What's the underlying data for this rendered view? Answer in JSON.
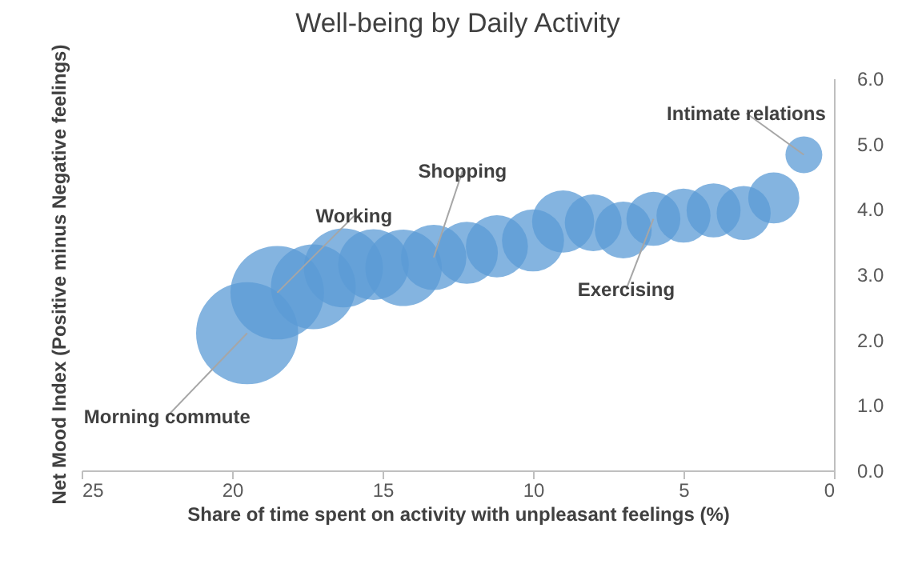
{
  "chart_data": {
    "type": "bubble",
    "title": "Well-being by Daily Activity",
    "xlabel": "Share of time spent on activity with unpleasant feelings (%)",
    "ylabel": "Net Mood Index (Positive minus Negative feelings)",
    "x": [
      19.5,
      18.5,
      17.3,
      16.3,
      15.3,
      14.3,
      13.3,
      12.2,
      11.2,
      10,
      9,
      8,
      7,
      6,
      5,
      4,
      3,
      2,
      1
    ],
    "series": [
      {
        "color": "#5b9bd5",
        "values": [
          2.1,
          2.72,
          2.81,
          3.1,
          3.15,
          3.1,
          3.26,
          3.33,
          3.43,
          3.52,
          3.81,
          3.79,
          3.68,
          3.85,
          3.9,
          3.98,
          3.94,
          4.17,
          4.83
        ],
        "sizes": [
          1,
          0.84,
          0.69,
          0.6,
          0.48,
          0.56,
          0.41,
          0.37,
          0.37,
          0.37,
          0.37,
          0.31,
          0.31,
          0.28,
          0.28,
          0.28,
          0.28,
          0.25,
          0.13
        ]
      }
    ],
    "xlim": [
      25,
      0
    ],
    "xticks": [
      25,
      20,
      15,
      10,
      5,
      0
    ],
    "ylim": [
      0,
      6
    ],
    "yticks": [
      {
        "value": 0,
        "label": "0.0"
      },
      {
        "value": 1,
        "label": "1.0"
      },
      {
        "value": 2,
        "label": "2.0"
      },
      {
        "value": 3,
        "label": "3.0"
      },
      {
        "value": 4,
        "label": "4.0"
      },
      {
        "value": 5,
        "label": "5.0"
      },
      {
        "value": 6,
        "label": "6.0"
      }
    ],
    "grid": false,
    "legend": false,
    "annotations": [
      {
        "text": "Morning commute",
        "x": 19.5,
        "y": 2.1
      },
      {
        "text": "Working",
        "x": 18.5,
        "y": 2.72
      },
      {
        "text": "Shopping",
        "x": 13.3,
        "y": 3.26
      },
      {
        "text": "Exercising",
        "x": 6,
        "y": 3.85
      },
      {
        "text": "Intimate relations",
        "x": 1,
        "y": 4.83
      }
    ]
  }
}
